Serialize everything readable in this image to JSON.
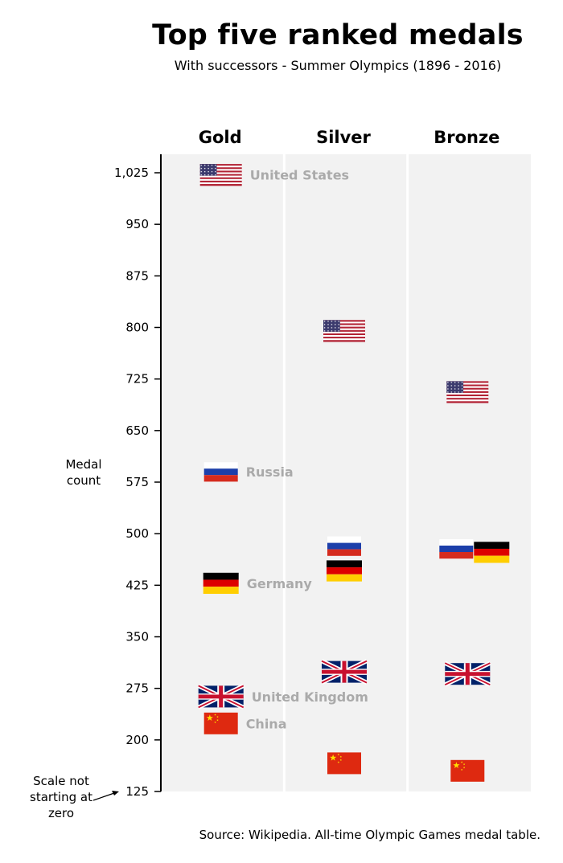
{
  "title": "Top five ranked medals",
  "subtitle": "With successors - Summer Olympics (1896 - 2016)",
  "source": "Source: Wikipedia. All-time Olympic Games medal table.",
  "y_axis_label": "Medal count",
  "scale_note": "Scale not starting at zero",
  "colors": {
    "panel": "#f2f2f2",
    "label": "#aaaaaa",
    "axis": "#000000"
  },
  "chart_data": {
    "type": "scatter",
    "title": "Top five ranked medals",
    "subtitle": "With successors - Summer Olympics (1896 - 2016)",
    "xlabel": "",
    "ylabel": "Medal count",
    "categories": [
      "Gold",
      "Silver",
      "Bronze"
    ],
    "ylim": [
      125,
      1050
    ],
    "yticks": [
      125,
      200,
      275,
      350,
      425,
      500,
      575,
      650,
      725,
      800,
      875,
      950,
      1025
    ],
    "ytick_labels": [
      "125",
      "200",
      "275",
      "350",
      "425",
      "500",
      "575",
      "650",
      "725",
      "800",
      "875",
      "950",
      "1,025"
    ],
    "grid": false,
    "legend": "labels next to Gold markers",
    "series": [
      {
        "name": "United States",
        "flag": "us",
        "values": [
          1022,
          795,
          706
        ]
      },
      {
        "name": "Russia",
        "flag": "ru",
        "values": [
          590,
          482,
          478
        ]
      },
      {
        "name": "Germany",
        "flag": "de",
        "values": [
          428,
          446,
          473
        ]
      },
      {
        "name": "United Kingdom",
        "flag": "gb",
        "values": [
          263,
          299,
          296
        ]
      },
      {
        "name": "China",
        "flag": "cn",
        "values": [
          224,
          166,
          155
        ]
      }
    ]
  }
}
